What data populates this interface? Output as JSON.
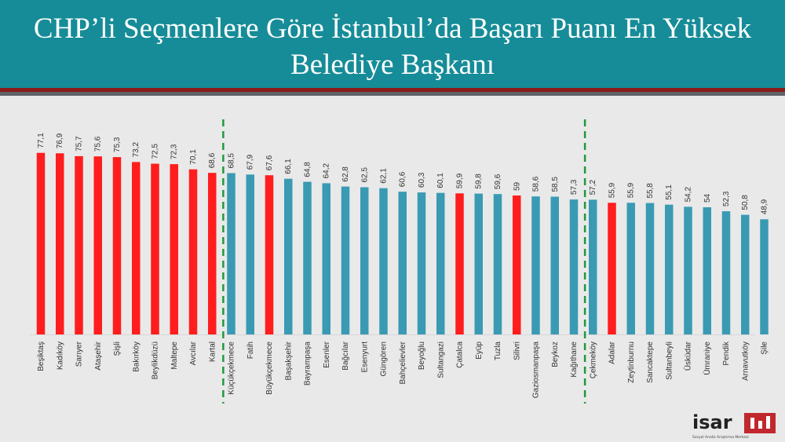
{
  "title": "CHP’li Seçmenlere Göre İstanbul’da Başarı Puanı En Yüksek Belediye Başkanı",
  "colors": {
    "header": "#168c98",
    "red": "#ff1d1d",
    "blue": "#3a9ab3",
    "divider": "#1f9a3b"
  },
  "logo": {
    "text": "isar",
    "tagline": "Sosyal Analiz Araştırma Merkezi",
    "icon": "isar-logo"
  },
  "chart_data": {
    "type": "bar",
    "ylim": [
      0,
      80
    ],
    "categories": [
      "Beşiktaş",
      "Kadıköy",
      "Sarıyer",
      "Ataşehir",
      "Şişli",
      "Bakırköy",
      "Beylikdüzü",
      "Maltepe",
      "Avcılar",
      "Kartal",
      "Küçükçekmece",
      "Fatih",
      "Büyükçekmece",
      "Başakşehir",
      "Bayrampaşa",
      "Esenler",
      "Bağcılar",
      "Esenyurt",
      "Güngören",
      "Bahçelievler",
      "Beyoğlu",
      "Sultangazi",
      "Çatalca",
      "Eyüp",
      "Tuzla",
      "Silivri",
      "Gaziosmanpaşa",
      "Beykoz",
      "Kağıthane",
      "Çekmeköy",
      "Adalar",
      "Zeytinburnu",
      "Sancaktepe",
      "Sultanbeyli",
      "Üsküdar",
      "Ümraniye",
      "Pendik",
      "Arnavutköy",
      "Şile"
    ],
    "values": [
      77.1,
      76.9,
      75.7,
      75.6,
      75.3,
      73.2,
      72.5,
      72.3,
      70.1,
      68.6,
      68.5,
      67.9,
      67.6,
      66.1,
      64.8,
      64.2,
      62.8,
      62.5,
      62.1,
      60.6,
      60.3,
      60.1,
      59.9,
      59.8,
      59.6,
      59,
      58.6,
      58.5,
      57.3,
      57.2,
      55.9,
      55.9,
      55.8,
      55.1,
      54.2,
      54,
      52.3,
      50.8,
      48.9
    ],
    "labels": [
      "77,1",
      "76,9",
      "75,7",
      "75,6",
      "75,3",
      "73,2",
      "72,5",
      "72,3",
      "70,1",
      "68,6",
      "68,5",
      "67,9",
      "67,6",
      "66,1",
      "64,8",
      "64,2",
      "62,8",
      "62,5",
      "62,1",
      "60,6",
      "60,3",
      "60,1",
      "59,9",
      "59,8",
      "59,6",
      "59",
      "58,6",
      "58,5",
      "57,3",
      "57,2",
      "55,9",
      "55,9",
      "55,8",
      "55,1",
      "54,2",
      "54",
      "52,3",
      "50,8",
      "48,9"
    ],
    "colors": [
      "red",
      "red",
      "red",
      "red",
      "red",
      "red",
      "red",
      "red",
      "red",
      "red",
      "blue",
      "blue",
      "red",
      "blue",
      "blue",
      "blue",
      "blue",
      "blue",
      "blue",
      "blue",
      "blue",
      "blue",
      "red",
      "blue",
      "blue",
      "red",
      "blue",
      "blue",
      "blue",
      "blue",
      "red",
      "blue",
      "blue",
      "blue",
      "blue",
      "blue",
      "blue",
      "blue",
      "blue"
    ],
    "dividers_after": [
      "Kartal",
      "Kağıthane"
    ]
  }
}
